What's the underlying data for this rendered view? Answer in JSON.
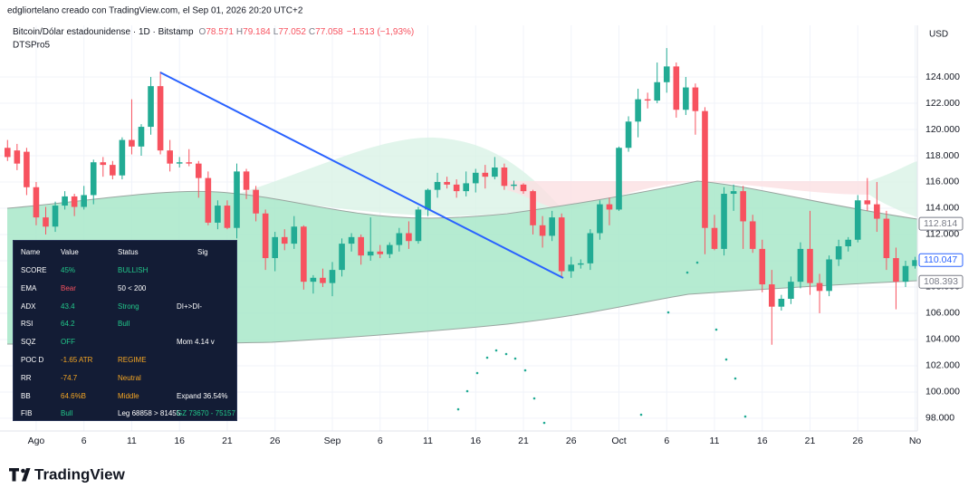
{
  "header": {
    "credit": "edgliortelano creado con TradingView.com, el Sep 01, 2026 20:20 UTC+2",
    "symbol": "Bitcoin/Dólar estadounidense · 1D · Bitstamp",
    "ohlc": [
      {
        "key": "O",
        "value": "78.571"
      },
      {
        "key": "H",
        "value": "79.184"
      },
      {
        "key": "L",
        "value": "77.052"
      },
      {
        "key": "C",
        "value": "77.058"
      }
    ],
    "change": "−1.513 (−1,93%)",
    "indicator": "DTSPro5",
    "currency": "USD",
    "logo": "TradingView"
  },
  "chart_data": {
    "type": "candlestick",
    "up_color": "#22ab94",
    "down_color": "#f7525f",
    "grid": true,
    "categories": [
      null,
      null,
      null,
      "Ago",
      null,
      null,
      null,
      null,
      "6",
      null,
      null,
      null,
      null,
      "11",
      null,
      null,
      null,
      null,
      "16",
      null,
      null,
      null,
      null,
      "21",
      null,
      null,
      null,
      null,
      "26",
      null,
      null,
      null,
      null,
      null,
      "Sep",
      null,
      null,
      null,
      null,
      "6",
      null,
      null,
      null,
      null,
      "11",
      null,
      null,
      null,
      null,
      "16",
      null,
      null,
      null,
      null,
      "21",
      null,
      null,
      null,
      null,
      "26",
      null,
      null,
      null,
      null,
      "Oct",
      null,
      null,
      null,
      null,
      "6",
      null,
      null,
      null,
      null,
      "11",
      null,
      null,
      null,
      null,
      "16",
      null,
      null,
      null,
      null,
      "21",
      null,
      null,
      null,
      null,
      "26",
      null,
      null,
      null,
      null,
      null,
      "No"
    ],
    "open": [
      118600,
      118400,
      118300,
      115600,
      113300,
      112600,
      114200,
      114900,
      114100,
      115000,
      117500,
      117300,
      116500,
      119200,
      118700,
      120200,
      123300,
      118400,
      117400,
      117500,
      117400,
      116300,
      112900,
      114200,
      112500,
      116800,
      115400,
      113600,
      110200,
      111800,
      111300,
      112600,
      108400,
      108700,
      108300,
      109300,
      111300,
      111800,
      110400,
      110700,
      110500,
      111200,
      112100,
      111500,
      113900,
      115400,
      116000,
      115800,
      115300,
      115900,
      116700,
      116400,
      117100,
      115700,
      115800,
      115300,
      112700,
      111900,
      113300,
      109200,
      109700,
      109800,
      112100,
      114300,
      113900,
      118600,
      120600,
      122300,
      122200,
      123600,
      124800,
      121500,
      123200,
      121400,
      112500,
      110900,
      115100,
      115300,
      113000,
      110900,
      108200,
      106500,
      107100,
      108400,
      110900,
      108300,
      107700,
      110100,
      111100,
      111600,
      114600,
      114300,
      113200,
      110200,
      108400,
      109600
    ],
    "high": [
      119200,
      118900,
      118600,
      116000,
      114100,
      114500,
      115300,
      115100,
      115700,
      117700,
      117900,
      117600,
      119400,
      122300,
      120400,
      124000,
      124400,
      119200,
      117900,
      118500,
      117600,
      116800,
      114600,
      114600,
      117400,
      117000,
      115700,
      113900,
      112200,
      112400,
      113400,
      112700,
      108900,
      109400,
      109900,
      111700,
      112100,
      112000,
      113300,
      111200,
      111400,
      112500,
      113000,
      114100,
      115500,
      116700,
      116400,
      116200,
      116800,
      117000,
      117300,
      117900,
      117400,
      116100,
      115900,
      115400,
      113400,
      113800,
      113600,
      110300,
      110100,
      112400,
      114600,
      114800,
      118700,
      121000,
      123100,
      122800,
      125100,
      126200,
      125100,
      124000,
      123500,
      121700,
      113500,
      115600,
      115800,
      115700,
      113500,
      111600,
      109300,
      107400,
      108800,
      111400,
      113800,
      109000,
      110400,
      111600,
      111800,
      115000,
      116300,
      116000,
      113800,
      111000,
      110000,
      110300
    ],
    "low": [
      117600,
      116900,
      115000,
      112700,
      112000,
      112200,
      113900,
      113400,
      113900,
      114300,
      116400,
      116200,
      116200,
      118100,
      118000,
      119600,
      118100,
      116800,
      117100,
      117200,
      114800,
      112700,
      112400,
      112400,
      111700,
      114700,
      113000,
      109300,
      109200,
      110800,
      110900,
      107800,
      107500,
      108000,
      107300,
      108800,
      110700,
      109700,
      110000,
      110200,
      110200,
      110700,
      110900,
      111300,
      113400,
      114800,
      115500,
      114800,
      114900,
      115200,
      115500,
      116200,
      115400,
      115400,
      115100,
      112000,
      111000,
      111500,
      108700,
      108700,
      109400,
      109300,
      111600,
      112700,
      113800,
      118300,
      119400,
      121600,
      122000,
      122800,
      120900,
      121100,
      119600,
      110500,
      110800,
      110400,
      113800,
      110900,
      110600,
      107600,
      103600,
      106200,
      106700,
      107900,
      107400,
      106000,
      107300,
      109600,
      110700,
      111400,
      113800,
      112200,
      109300,
      106300,
      108000,
      109400
    ],
    "close": [
      117900,
      117400,
      115600,
      113300,
      112600,
      114200,
      114900,
      114100,
      115000,
      117500,
      117300,
      116500,
      119200,
      118700,
      120200,
      123300,
      118400,
      117400,
      117500,
      117400,
      116300,
      112900,
      114200,
      112500,
      116800,
      115400,
      113600,
      110200,
      111800,
      111300,
      112600,
      108400,
      108700,
      108300,
      109300,
      111300,
      111800,
      110400,
      110700,
      110500,
      111200,
      112100,
      111500,
      113900,
      115400,
      116000,
      115800,
      115300,
      115900,
      116700,
      116400,
      117100,
      115700,
      115800,
      115300,
      112700,
      111900,
      113300,
      109200,
      109700,
      109800,
      112100,
      114300,
      113900,
      118600,
      120600,
      122300,
      122200,
      123600,
      124800,
      121500,
      123200,
      121400,
      112500,
      110900,
      115100,
      115300,
      113000,
      110900,
      108200,
      106500,
      107100,
      108400,
      110900,
      108300,
      107700,
      110100,
      111100,
      111600,
      114600,
      114300,
      113200,
      110200,
      108400,
      109600,
      110047
    ],
    "ylim": [
      97030,
      127930
    ],
    "yticks": [
      {
        "value": 98000,
        "label": "98.000"
      },
      {
        "value": 100000,
        "label": "100.000"
      },
      {
        "value": 102000,
        "label": "102.000"
      },
      {
        "value": 104000,
        "label": "104.000"
      },
      {
        "value": 106000,
        "label": "106.000"
      },
      {
        "value": 108000,
        "label": "108.000"
      },
      {
        "value": 110000,
        "label": "110.000"
      },
      {
        "value": 112000,
        "label": "112.000"
      },
      {
        "value": 114000,
        "label": "114.000"
      },
      {
        "value": 116000,
        "label": "116.000"
      },
      {
        "value": 118000,
        "label": "118.000"
      },
      {
        "value": 120000,
        "label": "120.000"
      },
      {
        "value": 122000,
        "label": "122.000"
      },
      {
        "value": 124000,
        "label": "124.000"
      }
    ],
    "price_labels": [
      {
        "value": 112814,
        "label": "112.814",
        "color": "#787b86"
      },
      {
        "value": 110047,
        "label": "110.047",
        "color": "#2962ff"
      },
      {
        "value": 108393,
        "label": "108.393",
        "color": "#787b86"
      }
    ]
  },
  "indicator_table": {
    "columns": [
      "Name",
      "Value",
      "Status",
      "Sig"
    ],
    "rows": [
      {
        "name": "SCORE",
        "value": "45%",
        "status": "BULLISH"
      },
      {
        "name": "EMA",
        "value": "Bear",
        "status": "50 < 200"
      },
      {
        "name": "ADX",
        "value": "43.4",
        "status": "Strong",
        "sig": "DI+>DI-"
      },
      {
        "name": "RSI",
        "value": "64.2",
        "status": "Bull"
      },
      {
        "name": "SQZ",
        "value": "OFF",
        "sig": "Mom 4.14 v"
      },
      {
        "name": "POC D",
        "value": "-1.65 ATR",
        "status": "REGIME"
      },
      {
        "name": "RR",
        "value": "-74.7",
        "status": "Neutral"
      },
      {
        "name": "BB",
        "value": "64.6%B",
        "status": "Middle",
        "sig": "Expand 36.54%"
      },
      {
        "name": "FIB",
        "value": "Bull",
        "status": "Leg 68858 > 81455",
        "sig": "GZ 73670 - 75157"
      }
    ]
  }
}
